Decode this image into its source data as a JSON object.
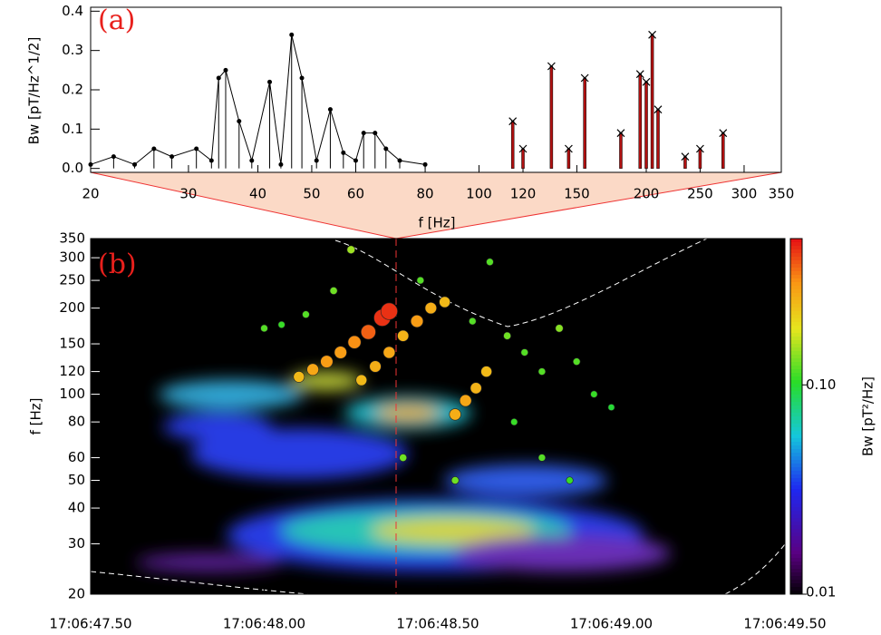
{
  "chart_data": [
    {
      "type": "line",
      "annotation": "(a)",
      "xlabel": "f [Hz]",
      "ylabel": "Bw [pT/Hz^1/2]",
      "xscale": "log",
      "xlim": [
        20,
        350
      ],
      "xticks": [
        20,
        30,
        40,
        50,
        60,
        80,
        100,
        120,
        150,
        200,
        250,
        300,
        350
      ],
      "ylim": [
        -0.01,
        0.41
      ],
      "yticks": [
        {
          "value": 0,
          "label": "0.0"
        },
        {
          "value": 0.1,
          "label": "0.1"
        },
        {
          "value": 0.2,
          "label": "0.2"
        },
        {
          "value": 0.3,
          "label": "0.3"
        },
        {
          "value": 0.4,
          "label": "0.4"
        }
      ],
      "color": "#000000",
      "peak_color": "#b01010",
      "x": [
        20,
        22,
        24,
        26,
        28,
        31,
        33,
        34,
        35,
        37,
        39,
        42,
        44,
        46,
        48,
        51,
        54,
        57,
        60,
        62,
        65,
        68,
        72,
        80
      ],
      "values": [
        0.01,
        0.03,
        0.01,
        0.05,
        0.03,
        0.05,
        0.02,
        0.23,
        0.25,
        0.12,
        0.02,
        0.22,
        0.01,
        0.34,
        0.23,
        0.02,
        0.15,
        0.04,
        0.02,
        0.09,
        0.09,
        0.05,
        0.02,
        0.01
      ],
      "peaks_x": [
        115,
        120,
        135,
        145,
        155,
        180,
        195,
        200,
        205,
        210,
        235,
        250,
        275
      ],
      "peaks": [
        0.12,
        0.05,
        0.26,
        0.05,
        0.23,
        0.09,
        0.24,
        0.22,
        0.34,
        0.15,
        0.03,
        0.05,
        0.09
      ]
    },
    {
      "type": "scatter",
      "annotation": "(b)",
      "ylabel": "f [Hz]",
      "yscale": "log",
      "colorbar_label": "Bw [pT²/Hz]",
      "xlim": [
        47.5,
        49.5
      ],
      "xticks": [
        {
          "value": 47.5,
          "label": "17:06:47.50"
        },
        {
          "value": 48.0,
          "label": "17:06:48.00"
        },
        {
          "value": 48.5,
          "label": "17:06:48.50"
        },
        {
          "value": 49.0,
          "label": "17:06:49.00"
        },
        {
          "value": 49.5,
          "label": "17:06:49.50"
        }
      ],
      "ylim": [
        20,
        350
      ],
      "yticks": [
        20,
        30,
        40,
        50,
        60,
        80,
        100,
        120,
        150,
        200,
        250,
        300,
        350
      ],
      "zlim": [
        0.01,
        0.5
      ],
      "zticks": [
        {
          "value": 0.1,
          "label": "0.10"
        },
        {
          "value": 0.01,
          "label": "0.01"
        }
      ],
      "x": [
        48.1,
        48.14,
        48.18,
        48.22,
        48.26,
        48.3,
        48.34,
        48.36,
        48.28,
        48.32,
        48.36,
        48.4,
        48.44,
        48.48,
        48.52,
        48.55,
        48.58,
        48.61,
        48.64,
        48.0,
        48.05,
        48.12,
        48.2,
        48.25,
        48.45,
        48.6,
        48.7,
        48.75,
        48.8,
        48.85,
        48.9,
        48.72,
        48.8,
        48.88,
        48.55,
        48.4,
        48.95,
        48.65,
        49.0
      ],
      "values": [
        115,
        122,
        130,
        140,
        152,
        165,
        185,
        195,
        112,
        125,
        140,
        160,
        180,
        200,
        210,
        85,
        95,
        105,
        120,
        170,
        175,
        190,
        230,
        320,
        250,
        180,
        160,
        140,
        120,
        170,
        130,
        80,
        60,
        50,
        50,
        60,
        100,
        290,
        90
      ],
      "sizes": [
        0.25,
        0.28,
        0.3,
        0.3,
        0.32,
        0.38,
        0.45,
        0.45,
        0.25,
        0.27,
        0.28,
        0.26,
        0.3,
        0.27,
        0.25,
        0.27,
        0.28,
        0.26,
        0.25,
        0.12,
        0.11,
        0.12,
        0.13,
        0.15,
        0.12,
        0.12,
        0.13,
        0.12,
        0.12,
        0.14,
        0.12,
        0.11,
        0.12,
        0.11,
        0.13,
        0.13,
        0.11,
        0.12,
        0.1
      ]
    }
  ]
}
